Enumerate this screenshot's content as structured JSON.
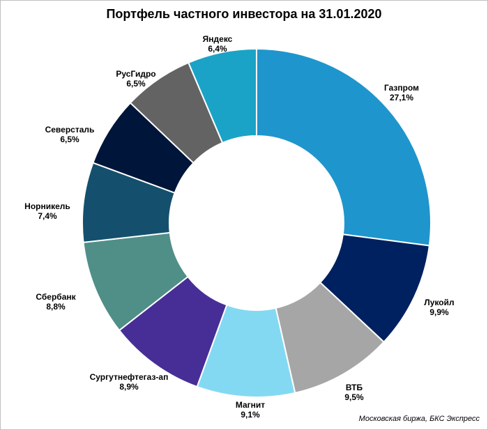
{
  "chart_data": {
    "type": "pie",
    "title": "Портфель частного инвестора на 31.01.2020",
    "source": "Московская биржа, БКС Экспресс",
    "legend": "none",
    "slices": [
      {
        "label": "Газпром",
        "value": 27.1,
        "value_label": "27,1%",
        "color": "#1f95cd"
      },
      {
        "label": "Лукойл",
        "value": 9.9,
        "value_label": "9,9%",
        "color": "#00215f"
      },
      {
        "label": "ВТБ",
        "value": 9.5,
        "value_label": "9,5%",
        "color": "#a6a6a6"
      },
      {
        "label": "Магнит",
        "value": 9.1,
        "value_label": "9,1%",
        "color": "#84d9f2"
      },
      {
        "label": "Сургутнефтегаз-ап",
        "value": 8.9,
        "value_label": "8,9%",
        "color": "#472e96"
      },
      {
        "label": "Сбербанк",
        "value": 8.8,
        "value_label": "8,8%",
        "color": "#4f8f87"
      },
      {
        "label": "Норникель",
        "value": 7.4,
        "value_label": "7,4%",
        "color": "#14506d"
      },
      {
        "label": "Северсталь",
        "value": 6.5,
        "value_label": "6,5%",
        "color": "#00153a"
      },
      {
        "label": "РусГидро",
        "value": 6.5,
        "value_label": "6,5%",
        "color": "#636363"
      },
      {
        "label": "Яндекс",
        "value": 6.4,
        "value_label": "6,4%",
        "color": "#1aa3c7"
      }
    ]
  }
}
